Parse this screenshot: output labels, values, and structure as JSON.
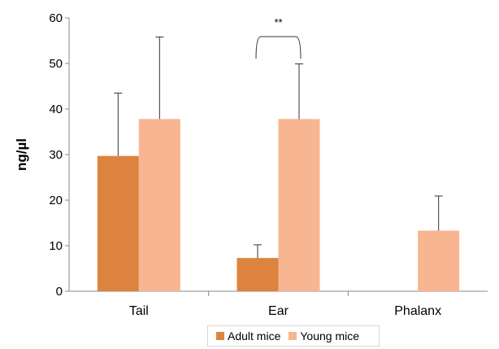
{
  "chart_data": {
    "type": "bar",
    "title": "",
    "xlabel": "",
    "ylabel": "ng/µl",
    "ylim": [
      0,
      60
    ],
    "yticks": [
      0,
      10,
      20,
      30,
      40,
      50,
      60
    ],
    "categories": [
      "Tail",
      "Ear",
      "Phalanx"
    ],
    "series": [
      {
        "name": "Adult mice",
        "color": "#dc843f",
        "values": [
          29.7,
          7.3,
          0
        ],
        "errors": [
          13.8,
          2.9,
          0
        ]
      },
      {
        "name": "Young mice",
        "color": "#f8b591",
        "values": [
          37.8,
          37.8,
          13.3
        ],
        "errors": [
          18.0,
          12.1,
          7.6
        ]
      }
    ],
    "annotations": [
      {
        "text": "**",
        "between_category": "Ear"
      }
    ],
    "legend_position": "bottom",
    "grid": false
  }
}
